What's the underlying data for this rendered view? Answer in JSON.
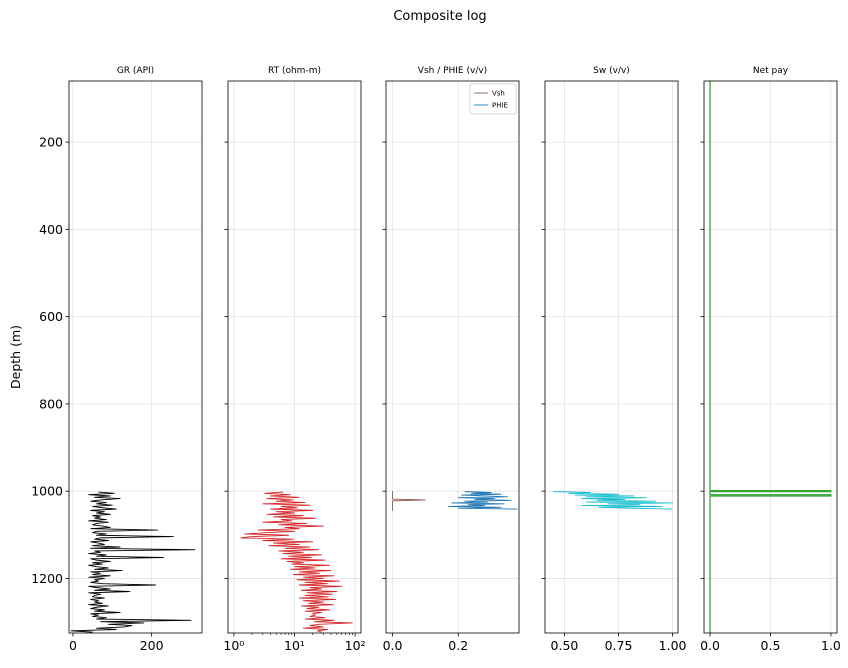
{
  "chart_data": {
    "type": "line",
    "title": "Composite log",
    "ylabel": "Depth (m)",
    "ylim": [
      1325,
      60
    ],
    "yticks": [
      200,
      400,
      600,
      800,
      1000,
      1200
    ],
    "ytick_labels": [
      "200",
      "400",
      "600",
      "800",
      "1000",
      "1200"
    ],
    "grid": true,
    "panels": [
      {
        "title": "GR (API)",
        "xlim": [
          -10,
          328
        ],
        "xscale": "linear",
        "xticks": [
          0,
          200
        ],
        "xtick_labels": [
          "0",
          "200"
        ],
        "series": [
          {
            "color": "#000000",
            "depth": [
              1002,
              1005,
              1008,
              1011,
              1014,
              1017,
              1020,
              1023,
              1026,
              1029,
              1032,
              1035,
              1038,
              1041,
              1044,
              1047,
              1050,
              1053,
              1056,
              1059,
              1062,
              1065,
              1068,
              1071,
              1074,
              1077,
              1080,
              1083,
              1086,
              1089,
              1092,
              1095,
              1098,
              1101,
              1104,
              1107,
              1110,
              1113,
              1116,
              1119,
              1122,
              1125,
              1128,
              1131,
              1134,
              1137,
              1140,
              1143,
              1146,
              1149,
              1152,
              1155,
              1158,
              1161,
              1164,
              1167,
              1170,
              1173,
              1176,
              1179,
              1182,
              1185,
              1188,
              1191,
              1194,
              1197,
              1200,
              1203,
              1206,
              1209,
              1212,
              1215,
              1218,
              1221,
              1224,
              1227,
              1230,
              1233,
              1236,
              1239,
              1242,
              1245,
              1248,
              1251,
              1254,
              1257,
              1260,
              1263,
              1266,
              1269,
              1272,
              1275,
              1278,
              1281,
              1284,
              1287,
              1290,
              1293,
              1296,
              1299,
              1302,
              1305,
              1308,
              1311,
              1314,
              1317,
              1320,
              1323
            ],
            "values": [
              65,
              105,
              40,
              95,
              55,
              120,
              70,
              45,
              85,
              60,
              100,
              50,
              75,
              110,
              45,
              80,
              60,
              95,
              50,
              70,
              55,
              85,
              40,
              90,
              60,
              50,
              75,
              95,
              45,
              215,
              60,
              50,
              85,
              60,
              255,
              70,
              55,
              90,
              45,
              65,
              80,
              50,
              120,
              45,
              310,
              55,
              70,
              40,
              85,
              60,
              230,
              45,
              60,
              95,
              50,
              75,
              40,
              60,
              90,
              55,
              125,
              45,
              70,
              50,
              95,
              40,
              80,
              55,
              65,
              45,
              75,
              210,
              40,
              60,
              95,
              55,
              145,
              40,
              70,
              55,
              50,
              80,
              45,
              65,
              55,
              75,
              40,
              90,
              60,
              45,
              80,
              55,
              120,
              45,
              65,
              50,
              85,
              60,
              300,
              70,
              180,
              90,
              150,
              130,
              60,
              110,
              -5,
              50
            ]
          }
        ]
      },
      {
        "title": "RT (ohm-m)",
        "xlim": [
          0.8,
          125
        ],
        "xscale": "log",
        "xticks": [
          1,
          10,
          100
        ],
        "xtick_labels": [
          "10⁰",
          "10¹",
          "10²"
        ],
        "series": [
          {
            "color": "#d62728",
            "depth": [
              1002,
              1005,
              1008,
              1011,
              1014,
              1017,
              1020,
              1023,
              1026,
              1029,
              1032,
              1035,
              1038,
              1041,
              1044,
              1047,
              1050,
              1053,
              1056,
              1059,
              1062,
              1065,
              1068,
              1071,
              1074,
              1077,
              1080,
              1083,
              1086,
              1089,
              1092,
              1095,
              1098,
              1101,
              1104,
              1107,
              1110,
              1113,
              1116,
              1119,
              1122,
              1125,
              1128,
              1131,
              1134,
              1137,
              1140,
              1143,
              1146,
              1149,
              1152,
              1155,
              1158,
              1161,
              1164,
              1167,
              1170,
              1173,
              1176,
              1179,
              1182,
              1185,
              1188,
              1191,
              1194,
              1197,
              1200,
              1203,
              1206,
              1209,
              1212,
              1215,
              1218,
              1221,
              1224,
              1227,
              1230,
              1233,
              1236,
              1239,
              1242,
              1245,
              1248,
              1251,
              1254,
              1257,
              1260,
              1263,
              1266,
              1269,
              1272,
              1275,
              1278,
              1281,
              1284,
              1287,
              1290,
              1293,
              1296,
              1299,
              1302,
              1305,
              1308,
              1311,
              1314,
              1317,
              1320,
              1323
            ],
            "values": [
              6.5,
              3.2,
              8.5,
              4.0,
              12,
              3.5,
              9.5,
              5.0,
              15,
              3.0,
              18,
              6.0,
              11,
              4.0,
              20,
              5.0,
              10,
              3.5,
              14,
              4.5,
              22,
              6.0,
              9.0,
              3.0,
              16,
              5.5,
              30,
              7.0,
              12,
              2.5,
              10,
              3.5,
              1.5,
              8.0,
              2.0,
              1.3,
              9.5,
              3.0,
              20,
              4.5,
              12,
              3.8,
              18,
              7.0,
              25,
              5.5,
              14,
              6.5,
              28,
              8.0,
              19,
              6.0,
              32,
              7.5,
              14,
              9.0,
              38,
              10,
              22,
              8.5,
              40,
              12,
              26,
              9.5,
              45,
              14,
              30,
              11,
              55,
              15,
              35,
              12,
              60,
              18,
              28,
              13,
              50,
              16,
              42,
              15,
              36,
              12,
              48,
              14,
              30,
              17,
              44,
              13,
              25,
              16,
              38,
              15,
              28,
              20,
              22,
              18,
              32,
              15,
              45,
              21,
              90,
              25,
              18,
              30,
              14,
              35,
              24,
              28
            ]
          }
        ]
      },
      {
        "title": "Vsh / PHIE (v/v)",
        "xlim": [
          -0.02,
          0.385
        ],
        "xscale": "linear",
        "xticks": [
          0.0,
          0.2
        ],
        "xtick_labels": [
          "0.0",
          "0.2"
        ],
        "legend": {
          "loc": "upper right",
          "entries": [
            "Vsh",
            "PHIE"
          ]
        },
        "series": [
          {
            "name": "Vsh",
            "color": "#8c564b",
            "depth": [
              1000,
              1005,
              1010,
              1015,
              1018,
              1020,
              1022,
              1025,
              1030,
              1035,
              1040,
              1045
            ],
            "values": [
              0.0,
              0.0,
              0.0,
              0.0,
              0.0,
              0.1,
              0.0,
              0.0,
              0.0,
              0.0,
              0.0,
              0.0
            ]
          },
          {
            "name": "PHIE",
            "color": "#1f77b4",
            "depth": [
              1001,
              1003,
              1005,
              1007,
              1009,
              1011,
              1013,
              1015,
              1017,
              1019,
              1021,
              1023,
              1025,
              1027,
              1029,
              1031,
              1033,
              1035,
              1037,
              1039,
              1041
            ],
            "values": [
              0.22,
              0.3,
              0.24,
              0.33,
              0.21,
              0.28,
              0.35,
              0.2,
              0.31,
              0.25,
              0.36,
              0.22,
              0.29,
              0.18,
              0.34,
              0.23,
              0.28,
              0.17,
              0.33,
              0.2,
              0.38
            ]
          }
        ]
      },
      {
        "title": "Sw (v/v)",
        "xlim": [
          0.41,
          1.025
        ],
        "xscale": "linear",
        "xticks": [
          0.5,
          0.75,
          1.0
        ],
        "xtick_labels": [
          "0.50",
          "0.75",
          "1.00"
        ],
        "series": [
          {
            "color": "#17becf",
            "depth": [
              1001,
              1003,
              1005,
              1007,
              1009,
              1011,
              1013,
              1015,
              1017,
              1019,
              1021,
              1023,
              1025,
              1027,
              1029,
              1031,
              1033,
              1035,
              1037,
              1039,
              1041
            ],
            "values": [
              0.45,
              0.62,
              0.52,
              0.75,
              0.55,
              0.82,
              0.6,
              0.88,
              0.58,
              0.78,
              0.65,
              0.92,
              0.6,
              1.0,
              0.7,
              0.85,
              0.58,
              0.95,
              0.66,
              0.8,
              1.0
            ]
          }
        ]
      },
      {
        "title": "Net pay",
        "xlim": [
          -0.05,
          1.05
        ],
        "xscale": "linear",
        "xticks": [
          0.0,
          0.5,
          1.0
        ],
        "xtick_labels": [
          "0.0",
          "0.5",
          "1.0"
        ],
        "series": [
          {
            "color": "#2ca02c",
            "depth": [
              60,
              999,
              999,
              1001,
              1001,
              1008,
              1008,
              1011,
              1011,
              1325
            ],
            "values": [
              0,
              0,
              1,
              1,
              0,
              0,
              1,
              1,
              0,
              0
            ]
          }
        ]
      }
    ]
  }
}
